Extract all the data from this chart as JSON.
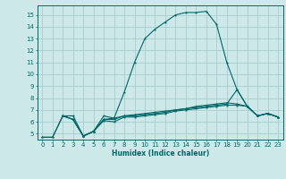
{
  "xlabel": "Humidex (Indice chaleur)",
  "bg_color": "#cce8e8",
  "grid_color": "#aacccc",
  "line_color": "#006666",
  "xlim": [
    -0.5,
    23.5
  ],
  "ylim": [
    4.5,
    15.8
  ],
  "yticks": [
    5,
    6,
    7,
    8,
    9,
    10,
    11,
    12,
    13,
    14,
    15
  ],
  "xticks": [
    0,
    1,
    2,
    3,
    4,
    5,
    6,
    7,
    8,
    9,
    10,
    11,
    12,
    13,
    14,
    15,
    16,
    17,
    18,
    19,
    20,
    21,
    22,
    23
  ],
  "series1": {
    "x": [
      0,
      1,
      2,
      3,
      4,
      5,
      6,
      7,
      8,
      9,
      10,
      11,
      12,
      13,
      14,
      15,
      16,
      17,
      18,
      19,
      20,
      21,
      22,
      23
    ],
    "y": [
      4.7,
      4.7,
      6.5,
      6.5,
      4.8,
      5.2,
      6.5,
      6.3,
      8.5,
      11.0,
      13.0,
      13.8,
      14.4,
      15.0,
      15.2,
      15.2,
      15.3,
      14.2,
      11.0,
      8.7,
      7.3,
      6.5,
      6.7,
      6.4
    ]
  },
  "series2": {
    "x": [
      0,
      1,
      2,
      3,
      4,
      5,
      6,
      7,
      8,
      9,
      10,
      11,
      12,
      13,
      14,
      15,
      16,
      17,
      18,
      19,
      20,
      21,
      22,
      23
    ],
    "y": [
      4.7,
      4.7,
      6.5,
      6.2,
      4.8,
      5.2,
      6.2,
      6.3,
      6.5,
      6.6,
      6.7,
      6.8,
      6.9,
      7.0,
      7.1,
      7.2,
      7.3,
      7.4,
      7.5,
      8.7,
      7.3,
      6.5,
      6.7,
      6.4
    ]
  },
  "series3": {
    "x": [
      2,
      3,
      4,
      5,
      6,
      7,
      8,
      9,
      10,
      11,
      12,
      13,
      14,
      15,
      16,
      17,
      18,
      19,
      20,
      21,
      22,
      23
    ],
    "y": [
      6.5,
      6.2,
      4.8,
      5.2,
      6.2,
      6.2,
      6.5,
      6.5,
      6.6,
      6.7,
      6.8,
      7.0,
      7.1,
      7.3,
      7.4,
      7.5,
      7.6,
      7.5,
      7.3,
      6.5,
      6.7,
      6.4
    ]
  },
  "series4": {
    "x": [
      2,
      3,
      4,
      5,
      6,
      7,
      8,
      9,
      10,
      11,
      12,
      13,
      14,
      15,
      16,
      17,
      18,
      19,
      20,
      21,
      22,
      23
    ],
    "y": [
      6.5,
      6.2,
      4.8,
      5.2,
      6.1,
      6.0,
      6.4,
      6.4,
      6.5,
      6.6,
      6.7,
      6.9,
      7.0,
      7.1,
      7.2,
      7.3,
      7.4,
      7.4,
      7.3,
      6.5,
      6.7,
      6.4
    ]
  }
}
